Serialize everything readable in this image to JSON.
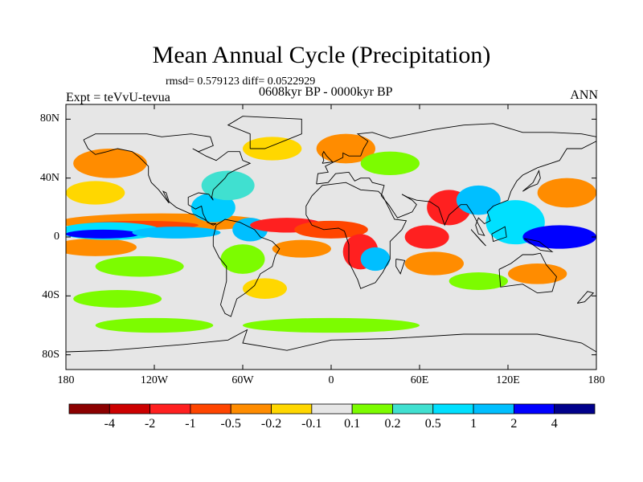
{
  "figure": {
    "title": "Mean Annual Cycle (Precipitation)",
    "stats": "rmsd= 0.579123  diff= 0.0522929",
    "period": "0608kyr BP - 0000kyr BP",
    "experiment": "Expt = teVvU-tevua",
    "season": "ANN"
  },
  "map": {
    "lon_range": [
      -180,
      180
    ],
    "lat_range": [
      -90,
      90
    ],
    "lat_ticks": [
      {
        "value": 80,
        "label": "80N"
      },
      {
        "value": 40,
        "label": "40N"
      },
      {
        "value": 0,
        "label": "0"
      },
      {
        "value": -40,
        "label": "40S"
      },
      {
        "value": -80,
        "label": "80S"
      }
    ],
    "lon_ticks": [
      {
        "value": -180,
        "label": "180"
      },
      {
        "value": -120,
        "label": "120W"
      },
      {
        "value": -60,
        "label": "60W"
      },
      {
        "value": 0,
        "label": "0"
      },
      {
        "value": 60,
        "label": "60E"
      },
      {
        "value": 120,
        "label": "120E"
      },
      {
        "value": 180,
        "label": "180"
      }
    ],
    "background_color": "#e6e6e6",
    "regions": [
      {
        "lon": -160,
        "lat": -7,
        "rx": 28,
        "ry": 6,
        "color": "#ff8c00"
      },
      {
        "lon": -115,
        "lat": 10,
        "rx": 70,
        "ry": 6,
        "color": "#ff8c00"
      },
      {
        "lon": -130,
        "lat": 8,
        "rx": 40,
        "ry": 3,
        "color": "#ff4500"
      },
      {
        "lon": -150,
        "lat": 4,
        "rx": 35,
        "ry": 6,
        "color": "#00e0ff"
      },
      {
        "lon": -155,
        "lat": 2,
        "rx": 25,
        "ry": 3,
        "color": "#0000ff"
      },
      {
        "lon": -105,
        "lat": 3,
        "rx": 30,
        "ry": 4,
        "color": "#00bfff"
      },
      {
        "lon": -150,
        "lat": 50,
        "rx": 25,
        "ry": 10,
        "color": "#ff8c00"
      },
      {
        "lon": -160,
        "lat": 30,
        "rx": 20,
        "ry": 8,
        "color": "#ffd700"
      },
      {
        "lon": -130,
        "lat": -20,
        "rx": 30,
        "ry": 7,
        "color": "#7cfc00"
      },
      {
        "lon": -145,
        "lat": -42,
        "rx": 30,
        "ry": 6,
        "color": "#7cfc00"
      },
      {
        "lon": -80,
        "lat": 20,
        "rx": 15,
        "ry": 10,
        "color": "#00ccff"
      },
      {
        "lon": -70,
        "lat": 35,
        "rx": 18,
        "ry": 10,
        "color": "#40e0d0"
      },
      {
        "lon": -55,
        "lat": 5,
        "rx": 12,
        "ry": 8,
        "color": "#00bfff"
      },
      {
        "lon": -30,
        "lat": 8,
        "rx": 25,
        "ry": 5,
        "color": "#ff2020"
      },
      {
        "lon": 0,
        "lat": 5,
        "rx": 25,
        "ry": 6,
        "color": "#ff4500"
      },
      {
        "lon": -20,
        "lat": -8,
        "rx": 20,
        "ry": 6,
        "color": "#ff8c00"
      },
      {
        "lon": -60,
        "lat": -15,
        "rx": 15,
        "ry": 10,
        "color": "#7cfc00"
      },
      {
        "lon": -45,
        "lat": -35,
        "rx": 15,
        "ry": 7,
        "color": "#ffd700"
      },
      {
        "lon": 20,
        "lat": -10,
        "rx": 12,
        "ry": 12,
        "color": "#ff2020"
      },
      {
        "lon": 30,
        "lat": -15,
        "rx": 10,
        "ry": 8,
        "color": "#00bfff"
      },
      {
        "lon": 65,
        "lat": 0,
        "rx": 15,
        "ry": 8,
        "color": "#ff2020"
      },
      {
        "lon": 70,
        "lat": -18,
        "rx": 20,
        "ry": 8,
        "color": "#ff8c00"
      },
      {
        "lon": 80,
        "lat": 20,
        "rx": 15,
        "ry": 12,
        "color": "#ff2020"
      },
      {
        "lon": 100,
        "lat": 25,
        "rx": 15,
        "ry": 10,
        "color": "#00bfff"
      },
      {
        "lon": 125,
        "lat": 10,
        "rx": 20,
        "ry": 15,
        "color": "#00e0ff"
      },
      {
        "lon": 155,
        "lat": 0,
        "rx": 25,
        "ry": 8,
        "color": "#0000ff"
      },
      {
        "lon": 160,
        "lat": 30,
        "rx": 20,
        "ry": 10,
        "color": "#ff8c00"
      },
      {
        "lon": 140,
        "lat": -25,
        "rx": 20,
        "ry": 7,
        "color": "#ff8c00"
      },
      {
        "lon": 100,
        "lat": -30,
        "rx": 20,
        "ry": 6,
        "color": "#7cfc00"
      },
      {
        "lon": -40,
        "lat": 60,
        "rx": 20,
        "ry": 8,
        "color": "#ffd700"
      },
      {
        "lon": 10,
        "lat": 60,
        "rx": 20,
        "ry": 10,
        "color": "#ff8c00"
      },
      {
        "lon": 40,
        "lat": 50,
        "rx": 20,
        "ry": 8,
        "color": "#7cfc00"
      },
      {
        "lon": 0,
        "lat": -60,
        "rx": 60,
        "ry": 5,
        "color": "#7cfc00"
      },
      {
        "lon": -120,
        "lat": -60,
        "rx": 40,
        "ry": 5,
        "color": "#7cfc00"
      }
    ],
    "coastlines": [
      [
        [
          -168,
          66
        ],
        [
          -160,
          70
        ],
        [
          -140,
          70
        ],
        [
          -125,
          70
        ],
        [
          -115,
          68
        ],
        [
          -95,
          70
        ],
        [
          -82,
          68
        ],
        [
          -80,
          62
        ],
        [
          -90,
          58
        ],
        [
          -94,
          60
        ],
        [
          -85,
          55
        ],
        [
          -78,
          52
        ],
        [
          -70,
          58
        ],
        [
          -62,
          58
        ],
        [
          -60,
          52
        ],
        [
          -55,
          50
        ],
        [
          -64,
          46
        ],
        [
          -70,
          43
        ],
        [
          -72,
          40
        ],
        [
          -76,
          36
        ],
        [
          -80,
          32
        ],
        [
          -81,
          27
        ],
        [
          -80,
          25
        ],
        [
          -83,
          29
        ],
        [
          -90,
          30
        ],
        [
          -97,
          27
        ],
        [
          -97,
          22
        ],
        [
          -92,
          19
        ],
        [
          -88,
          21
        ],
        [
          -87,
          16
        ],
        [
          -84,
          10
        ],
        [
          -80,
          8
        ],
        [
          -78,
          9
        ],
        [
          -82,
          9
        ],
        [
          -86,
          12
        ],
        [
          -92,
          15
        ],
        [
          -96,
          16
        ],
        [
          -105,
          20
        ],
        [
          -110,
          24
        ],
        [
          -112,
          30
        ],
        [
          -114,
          31
        ],
        [
          -110,
          23
        ],
        [
          -117,
          32
        ],
        [
          -122,
          37
        ],
        [
          -124,
          42
        ],
        [
          -124,
          48
        ],
        [
          -130,
          54
        ],
        [
          -135,
          58
        ],
        [
          -145,
          60
        ],
        [
          -152,
          58
        ],
        [
          -160,
          56
        ],
        [
          -165,
          60
        ],
        [
          -168,
          66
        ]
      ],
      [
        [
          -78,
          8
        ],
        [
          -72,
          12
        ],
        [
          -62,
          10
        ],
        [
          -52,
          5
        ],
        [
          -48,
          0
        ],
        [
          -40,
          -3
        ],
        [
          -35,
          -8
        ],
        [
          -38,
          -13
        ],
        [
          -40,
          -20
        ],
        [
          -48,
          -25
        ],
        [
          -52,
          -33
        ],
        [
          -58,
          -38
        ],
        [
          -64,
          -42
        ],
        [
          -66,
          -48
        ],
        [
          -68,
          -54
        ],
        [
          -72,
          -52
        ],
        [
          -75,
          -46
        ],
        [
          -73,
          -38
        ],
        [
          -71,
          -30
        ],
        [
          -71,
          -20
        ],
        [
          -76,
          -14
        ],
        [
          -80,
          -6
        ],
        [
          -80,
          0
        ],
        [
          -78,
          8
        ]
      ],
      [
        [
          -17,
          15
        ],
        [
          -17,
          21
        ],
        [
          -13,
          28
        ],
        [
          -6,
          35
        ],
        [
          10,
          37
        ],
        [
          20,
          32
        ],
        [
          32,
          31
        ],
        [
          35,
          28
        ],
        [
          43,
          12
        ],
        [
          51,
          11
        ],
        [
          48,
          5
        ],
        [
          40,
          -3
        ],
        [
          40,
          -15
        ],
        [
          35,
          -24
        ],
        [
          30,
          -31
        ],
        [
          20,
          -35
        ],
        [
          18,
          -29
        ],
        [
          12,
          -17
        ],
        [
          12,
          -5
        ],
        [
          9,
          4
        ],
        [
          5,
          6
        ],
        [
          -5,
          5
        ],
        [
          -13,
          8
        ],
        [
          -17,
          15
        ]
      ],
      [
        [
          -10,
          36
        ],
        [
          -9,
          43
        ],
        [
          -2,
          44
        ],
        [
          -4,
          48
        ],
        [
          2,
          51
        ],
        [
          8,
          54
        ],
        [
          8,
          57
        ],
        [
          12,
          55
        ],
        [
          20,
          55
        ],
        [
          22,
          60
        ],
        [
          25,
          65
        ],
        [
          18,
          70
        ],
        [
          28,
          71
        ],
        [
          40,
          67
        ],
        [
          55,
          70
        ],
        [
          70,
          73
        ],
        [
          90,
          76
        ],
        [
          110,
          77
        ],
        [
          130,
          71
        ],
        [
          150,
          71
        ],
        [
          170,
          70
        ],
        [
          180,
          68
        ],
        [
          180,
          65
        ],
        [
          170,
          60
        ],
        [
          160,
          60
        ],
        [
          155,
          52
        ],
        [
          140,
          47
        ],
        [
          130,
          42
        ],
        [
          126,
          38
        ],
        [
          122,
          31
        ],
        [
          120,
          25
        ],
        [
          110,
          21
        ],
        [
          106,
          17
        ],
        [
          108,
          11
        ],
        [
          104,
          9
        ],
        [
          100,
          13
        ],
        [
          98,
          8
        ],
        [
          100,
          2
        ],
        [
          104,
          1
        ],
        [
          96,
          16
        ],
        [
          92,
          22
        ],
        [
          88,
          22
        ],
        [
          80,
          15
        ],
        [
          77,
          8
        ],
        [
          73,
          20
        ],
        [
          67,
          24
        ],
        [
          58,
          25
        ],
        [
          52,
          27
        ],
        [
          48,
          29
        ],
        [
          55,
          25
        ],
        [
          58,
          22
        ],
        [
          55,
          17
        ],
        [
          45,
          13
        ],
        [
          39,
          22
        ],
        [
          34,
          28
        ],
        [
          36,
          35
        ],
        [
          28,
          37
        ],
        [
          26,
          40
        ],
        [
          20,
          40
        ],
        [
          16,
          38
        ],
        [
          12,
          44
        ],
        [
          3,
          43
        ],
        [
          -2,
          37
        ],
        [
          -10,
          36
        ]
      ],
      [
        [
          114,
          -22
        ],
        [
          122,
          -18
        ],
        [
          130,
          -12
        ],
        [
          137,
          -12
        ],
        [
          142,
          -11
        ],
        [
          146,
          -19
        ],
        [
          153,
          -27
        ],
        [
          150,
          -37
        ],
        [
          140,
          -38
        ],
        [
          130,
          -32
        ],
        [
          115,
          -34
        ],
        [
          114,
          -22
        ]
      ],
      [
        [
          -55,
          60
        ],
        [
          -45,
          60
        ],
        [
          -20,
          70
        ],
        [
          -20,
          80
        ],
        [
          -60,
          82
        ],
        [
          -70,
          76
        ],
        [
          -55,
          70
        ],
        [
          -55,
          60
        ]
      ],
      [
        [
          -6,
          50
        ],
        [
          1,
          51
        ],
        [
          -3,
          55
        ],
        [
          -5,
          58
        ],
        [
          -6,
          56
        ],
        [
          -5,
          52
        ],
        [
          -6,
          50
        ]
      ],
      [
        [
          130,
          31
        ],
        [
          135,
          34
        ],
        [
          140,
          36
        ],
        [
          142,
          40
        ],
        [
          141,
          45
        ],
        [
          137,
          37
        ],
        [
          130,
          31
        ]
      ],
      [
        [
          95,
          5
        ],
        [
          105,
          -6
        ],
        [
          102,
          -3
        ],
        [
          95,
          5
        ]
      ],
      [
        [
          109,
          2
        ],
        [
          118,
          7
        ],
        [
          119,
          0
        ],
        [
          110,
          -3
        ],
        [
          109,
          2
        ]
      ],
      [
        [
          131,
          -1
        ],
        [
          141,
          -3
        ],
        [
          150,
          -10
        ],
        [
          142,
          -9
        ],
        [
          131,
          -1
        ]
      ],
      [
        [
          44,
          -15
        ],
        [
          50,
          -16
        ],
        [
          47,
          -25
        ],
        [
          44,
          -20
        ],
        [
          44,
          -15
        ]
      ],
      [
        [
          167,
          -45
        ],
        [
          174,
          -37
        ],
        [
          178,
          -38
        ],
        [
          172,
          -44
        ],
        [
          167,
          -45
        ]
      ],
      [
        [
          -180,
          -78
        ],
        [
          -150,
          -77
        ],
        [
          -100,
          -73
        ],
        [
          -70,
          -70
        ],
        [
          -57,
          -63
        ],
        [
          -60,
          -72
        ],
        [
          -30,
          -77
        ],
        [
          0,
          -70
        ],
        [
          40,
          -69
        ],
        [
          90,
          -66
        ],
        [
          140,
          -66
        ],
        [
          170,
          -72
        ],
        [
          180,
          -78
        ]
      ]
    ]
  },
  "colorbar": {
    "colors": [
      "#8b0000",
      "#cc0000",
      "#ff2020",
      "#ff4500",
      "#ff8c00",
      "#ffd700",
      "#e6e6e6",
      "#7cfc00",
      "#40e0d0",
      "#00e0ff",
      "#00bfff",
      "#0000ff",
      "#00008b"
    ],
    "labels": [
      "-4",
      "-2",
      "-1",
      "-0.5",
      "-0.2",
      "-0.1",
      "0.1",
      "0.2",
      "0.5",
      "1",
      "2",
      "4"
    ]
  }
}
